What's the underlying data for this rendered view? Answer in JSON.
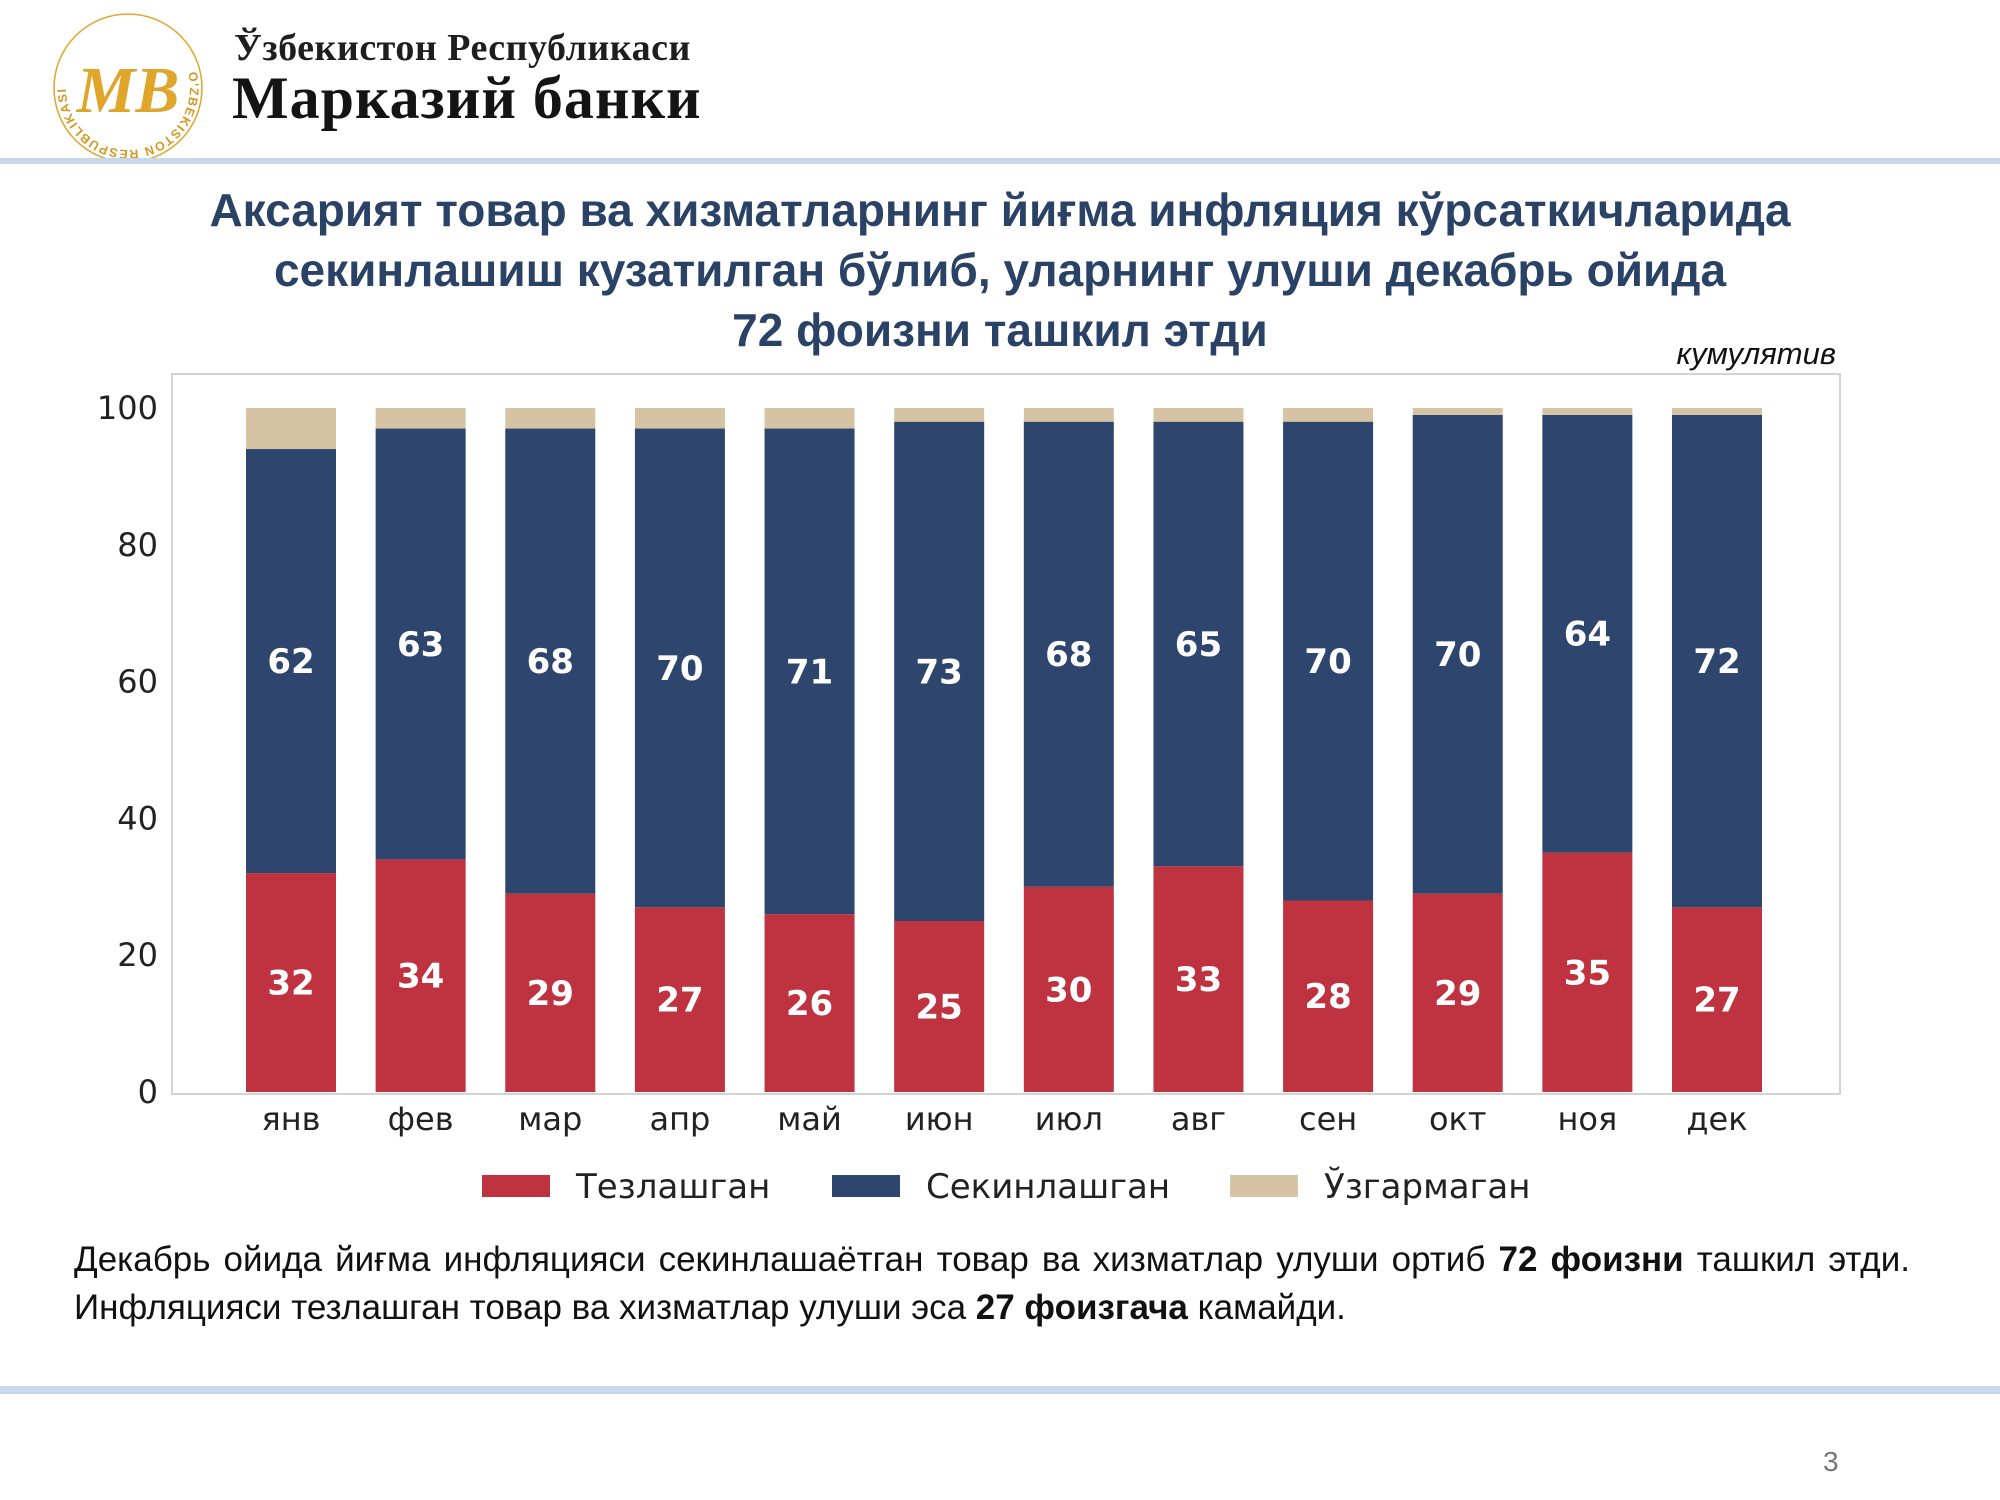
{
  "header": {
    "logo_ring_text": "O'ZBEKISTON RESPUBLIKASI • MARKAZIY BANKI",
    "logo_monogram": "MB",
    "bank_name_line1": "Ўзбекистон Республикаси",
    "bank_name_line2": "Марказий банки"
  },
  "slide": {
    "title_lines": [
      "Аксарият товар ва хизматларнинг йиғма инфляция кўрсаткичларида",
      "секинлашиш кузатилган бўлиб, уларнинг улуши декабрь ойида",
      "72 фоизни ташкил этди"
    ],
    "chart_note": "кумулятив",
    "summary": {
      "part1": "Декабрь ойида йиғма инфляцияси секинлашаётган товар ва хизматлар улуши ортиб ",
      "bold1": "72 фоизни",
      "part2": " ташкил этди. Инфляцияси тезлашган товар ва хизматлар улуши эса ",
      "bold2": "27 фоизгача",
      "part3": " камайди."
    },
    "page_number": "3"
  },
  "colors": {
    "accelerated": "#bf3340",
    "decelerated": "#2e456d",
    "unchanged": "#d6c3a3",
    "title": "#2b4267",
    "rule": "#c7d8ea",
    "logo_gold": "#e0a62c"
  },
  "chart_data": {
    "type": "bar",
    "stacked": true,
    "categories": [
      "янв",
      "фев",
      "мар",
      "апр",
      "май",
      "июн",
      "июл",
      "авг",
      "сен",
      "окт",
      "ноя",
      "дек"
    ],
    "series": [
      {
        "name": "Тезлашган",
        "color": "#bf3340",
        "values": [
          32,
          34,
          29,
          27,
          26,
          25,
          30,
          33,
          28,
          29,
          35,
          27
        ],
        "labeled": true
      },
      {
        "name": "Секинлашган",
        "color": "#2e456d",
        "values": [
          62,
          63,
          68,
          70,
          71,
          73,
          68,
          65,
          70,
          70,
          64,
          72
        ],
        "labeled": true
      },
      {
        "name": "Ўзгармаган",
        "color": "#d6c3a3",
        "values": [
          6,
          3,
          3,
          3,
          3,
          2,
          2,
          2,
          2,
          1,
          1,
          1
        ],
        "labeled": false
      }
    ],
    "ylim": [
      0,
      100
    ],
    "yticks": [
      0,
      20,
      40,
      60,
      80,
      100
    ],
    "legend_position": "bottom-center",
    "grid": false
  }
}
